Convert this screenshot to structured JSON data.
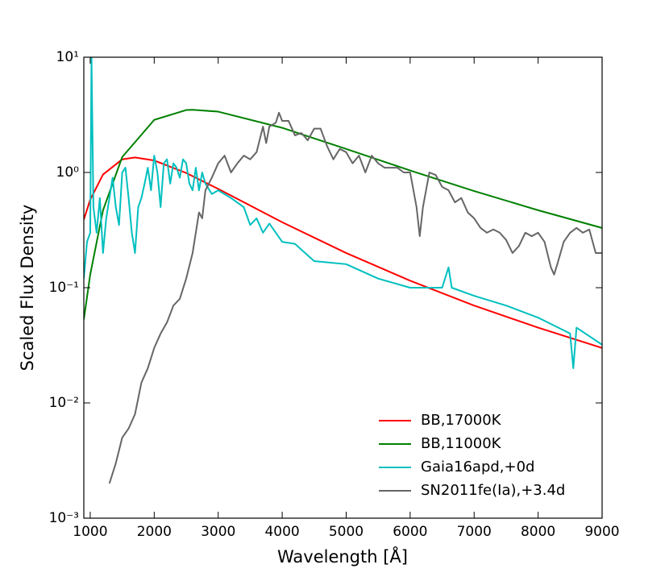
{
  "chart_data": {
    "type": "line",
    "x_label": "Wavelength [Å]",
    "y_label": "Scaled Flux Density",
    "yscale": "log",
    "xlim": [
      900,
      9000
    ],
    "ylim": [
      0.001,
      10
    ],
    "xticks": [
      1000,
      2000,
      3000,
      4000,
      5000,
      6000,
      7000,
      8000,
      9000
    ],
    "yticks": [
      {
        "value": 0.001,
        "label": "10⁻³"
      },
      {
        "value": 0.01,
        "label": "10⁻²"
      },
      {
        "value": 0.1,
        "label": "10⁻¹"
      },
      {
        "value": 1,
        "label": "10⁰"
      },
      {
        "value": 10,
        "label": "10¹"
      }
    ],
    "legend": "lower right",
    "series": [
      {
        "name": "BB,17000K",
        "color": "#ff0000",
        "x": [
          900,
          1000,
          1200,
          1500,
          1700,
          2000,
          2500,
          3000,
          4000,
          5000,
          6000,
          7000,
          8000,
          9000
        ],
        "values": [
          0.39,
          0.58,
          0.96,
          1.3,
          1.35,
          1.27,
          0.99,
          0.72,
          0.37,
          0.2,
          0.115,
          0.07,
          0.045,
          0.03
        ]
      },
      {
        "name": "BB,11000K",
        "color": "#008000",
        "x": [
          900,
          1000,
          1200,
          1500,
          2000,
          2500,
          2600,
          3000,
          4000,
          5000,
          6000,
          7000,
          8000,
          9000
        ],
        "values": [
          0.053,
          0.13,
          0.47,
          1.36,
          2.86,
          3.48,
          3.5,
          3.37,
          2.44,
          1.6,
          1.04,
          0.69,
          0.47,
          0.33
        ]
      },
      {
        "name": "Gaia16apd,+0d",
        "color": "#00bfbf",
        "x": [
          900,
          950,
          1000,
          1020,
          1050,
          1100,
          1150,
          1200,
          1250,
          1300,
          1350,
          1400,
          1450,
          1500,
          1550,
          1600,
          1650,
          1700,
          1750,
          1800,
          1850,
          1900,
          1950,
          2000,
          2050,
          2100,
          2150,
          2200,
          2250,
          2300,
          2350,
          2400,
          2450,
          2500,
          2550,
          2600,
          2650,
          2700,
          2750,
          2800,
          2900,
          3000,
          3200,
          3400,
          3500,
          3600,
          3700,
          3800,
          4000,
          4200,
          4500,
          5000,
          5500,
          6000,
          6500,
          6600,
          6650,
          7000,
          7500,
          8000,
          8500,
          8550,
          8600,
          9000
        ],
        "values": [
          0.12,
          0.25,
          0.3,
          10,
          0.5,
          0.3,
          0.6,
          0.2,
          0.4,
          0.6,
          0.9,
          0.5,
          0.35,
          1.0,
          1.1,
          0.6,
          0.3,
          0.2,
          0.5,
          0.6,
          0.8,
          1.1,
          0.7,
          1.4,
          1.0,
          0.5,
          1.2,
          1.3,
          0.8,
          1.2,
          1.1,
          0.9,
          1.3,
          1.2,
          0.8,
          0.7,
          1.1,
          0.7,
          1.0,
          0.8,
          0.65,
          0.7,
          0.6,
          0.5,
          0.35,
          0.4,
          0.3,
          0.36,
          0.25,
          0.24,
          0.17,
          0.16,
          0.12,
          0.1,
          0.1,
          0.15,
          0.1,
          0.085,
          0.07,
          0.055,
          0.04,
          0.02,
          0.045,
          0.032
        ]
      },
      {
        "name": "SN2011fe(Ia),+3.4d",
        "color": "#666666",
        "x": [
          1300,
          1400,
          1500,
          1600,
          1700,
          1800,
          1900,
          2000,
          2100,
          2200,
          2300,
          2400,
          2500,
          2600,
          2700,
          2750,
          2800,
          2900,
          3000,
          3100,
          3200,
          3300,
          3400,
          3500,
          3600,
          3700,
          3750,
          3800,
          3900,
          3950,
          4000,
          4100,
          4200,
          4300,
          4400,
          4500,
          4600,
          4700,
          4800,
          4900,
          5000,
          5100,
          5200,
          5300,
          5400,
          5500,
          5600,
          5800,
          5900,
          6000,
          6100,
          6150,
          6200,
          6300,
          6400,
          6500,
          6600,
          6700,
          6800,
          6900,
          7000,
          7100,
          7200,
          7300,
          7400,
          7500,
          7600,
          7700,
          7800,
          7900,
          8000,
          8100,
          8200,
          8250,
          8300,
          8400,
          8500,
          8600,
          8700,
          8800,
          8900,
          9000
        ],
        "values": [
          0.002,
          0.003,
          0.005,
          0.006,
          0.008,
          0.015,
          0.02,
          0.03,
          0.04,
          0.05,
          0.07,
          0.08,
          0.12,
          0.2,
          0.45,
          0.4,
          0.7,
          0.9,
          1.2,
          1.4,
          1.0,
          1.2,
          1.4,
          1.3,
          1.5,
          2.5,
          1.8,
          2.5,
          2.7,
          3.3,
          2.8,
          2.8,
          2.1,
          2.2,
          1.9,
          2.4,
          2.4,
          1.7,
          1.3,
          1.6,
          1.5,
          1.2,
          1.4,
          1.0,
          1.4,
          1.2,
          1.1,
          1.1,
          1.0,
          1.0,
          0.5,
          0.28,
          0.5,
          1.0,
          0.95,
          0.75,
          0.7,
          0.55,
          0.6,
          0.45,
          0.4,
          0.33,
          0.3,
          0.32,
          0.3,
          0.26,
          0.2,
          0.23,
          0.3,
          0.28,
          0.3,
          0.25,
          0.15,
          0.13,
          0.16,
          0.25,
          0.3,
          0.33,
          0.3,
          0.32,
          0.2,
          0.2
        ]
      }
    ]
  }
}
